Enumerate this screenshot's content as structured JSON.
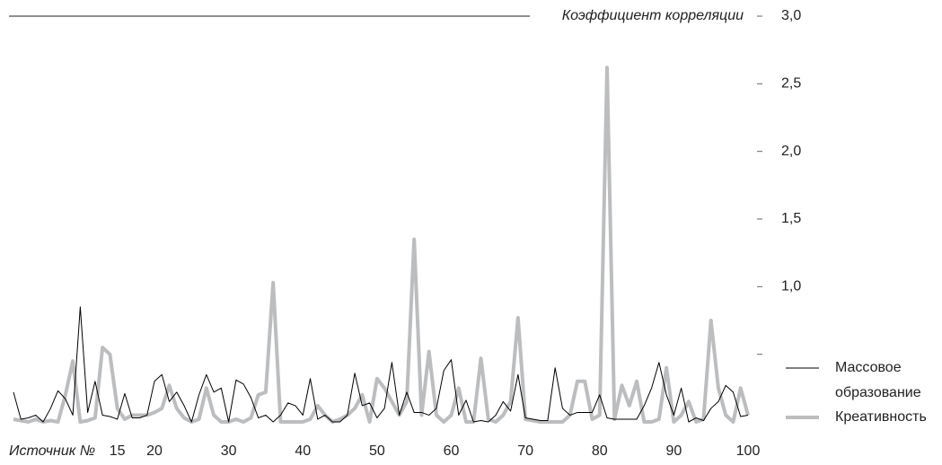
{
  "chart_data": {
    "type": "line",
    "title": "Коэффициент корреляции",
    "x_label": "Источник №",
    "x": [
      1,
      2,
      3,
      4,
      5,
      6,
      7,
      8,
      9,
      10,
      11,
      12,
      13,
      14,
      15,
      16,
      17,
      18,
      19,
      20,
      21,
      22,
      23,
      24,
      25,
      26,
      27,
      28,
      29,
      30,
      31,
      32,
      33,
      34,
      35,
      36,
      37,
      38,
      39,
      40,
      41,
      42,
      43,
      44,
      45,
      46,
      47,
      48,
      49,
      50,
      51,
      52,
      53,
      54,
      55,
      56,
      57,
      58,
      59,
      60,
      61,
      62,
      63,
      64,
      65,
      66,
      67,
      68,
      69,
      70,
      71,
      72,
      73,
      74,
      75,
      76,
      77,
      78,
      79,
      80,
      81,
      82,
      83,
      84,
      85,
      86,
      87,
      88,
      89,
      90,
      91,
      92,
      93,
      94,
      95,
      96,
      97,
      98,
      99,
      100
    ],
    "series": [
      {
        "name": "Массовое образование",
        "color": "#000000",
        "values": [
          0.22,
          0.02,
          0.03,
          0.05,
          0,
          0.1,
          0.23,
          0.17,
          0.05,
          0.85,
          0.07,
          0.3,
          0.05,
          0.04,
          0.02,
          0.21,
          0.03,
          0.03,
          0.05,
          0.3,
          0.35,
          0.15,
          0.22,
          0.12,
          0,
          0.2,
          0.35,
          0.22,
          0.25,
          0,
          0.31,
          0.28,
          0.18,
          0.03,
          0.05,
          0,
          0.05,
          0.14,
          0.12,
          0.05,
          0.32,
          0.02,
          0.05,
          0,
          0,
          0.05,
          0.36,
          0.12,
          0.14,
          0.03,
          0.1,
          0.44,
          0.05,
          0.22,
          0.07,
          0.07,
          0.05,
          0.1,
          0.38,
          0.46,
          0.05,
          0.16,
          0,
          0.01,
          0,
          0.05,
          0.15,
          0.08,
          0.35,
          0.03,
          0.02,
          0.01,
          0.01,
          0.4,
          0.1,
          0.05,
          0.07,
          0.07,
          0.07,
          0.2,
          0.03,
          0.02,
          0.02,
          0.02,
          0.02,
          0.12,
          0.25,
          0.44,
          0.2,
          0.05,
          0.25,
          0,
          0.03,
          0.01,
          0.1,
          0.15,
          0.27,
          0.22,
          0.04,
          0.05
        ]
      },
      {
        "name": "Креативность",
        "color": "#bcbdbf",
        "values": [
          0.02,
          0.01,
          0,
          0.02,
          0,
          0.01,
          0,
          0.2,
          0.45,
          0,
          0.01,
          0.03,
          0.55,
          0.5,
          0.1,
          0.02,
          0.05,
          0.05,
          0.05,
          0.07,
          0.1,
          0.27,
          0.1,
          0.03,
          0,
          0.02,
          0.25,
          0.05,
          0,
          0,
          0.02,
          0,
          0.03,
          0.2,
          0.22,
          1.03,
          0,
          0,
          0,
          0,
          0.02,
          0.12,
          0.05,
          0,
          0.02,
          0.05,
          0.1,
          0.2,
          0,
          0.32,
          0.25,
          0.15,
          0.05,
          0.15,
          1.35,
          0.05,
          0.52,
          0.05,
          0,
          0.05,
          0.25,
          0,
          0,
          0.47,
          0.02,
          0,
          0.05,
          0.15,
          0.77,
          0.02,
          0.01,
          0,
          0,
          0,
          0,
          0.05,
          0.3,
          0.3,
          0.02,
          0.05,
          2.62,
          0.02,
          0.27,
          0.12,
          0.3,
          0,
          0,
          0.02,
          0.4,
          0,
          0.05,
          0.15,
          0,
          0.02,
          0.75,
          0.25,
          0.05,
          0,
          0.25,
          0.05
        ]
      }
    ],
    "xlim": [
      1,
      100
    ],
    "xticks": [
      15,
      20,
      30,
      40,
      50,
      60,
      70,
      80,
      90,
      100
    ],
    "ylim": [
      0,
      3
    ],
    "yticks": [
      {
        "value": 0.5,
        "label": null
      },
      {
        "value": 1,
        "label": "1,0"
      },
      {
        "value": 1.5,
        "label": "1,5"
      },
      {
        "value": 2,
        "label": "2,0"
      },
      {
        "value": 2.5,
        "label": "2,5"
      },
      {
        "value": 3,
        "label": "3,0"
      }
    ]
  }
}
